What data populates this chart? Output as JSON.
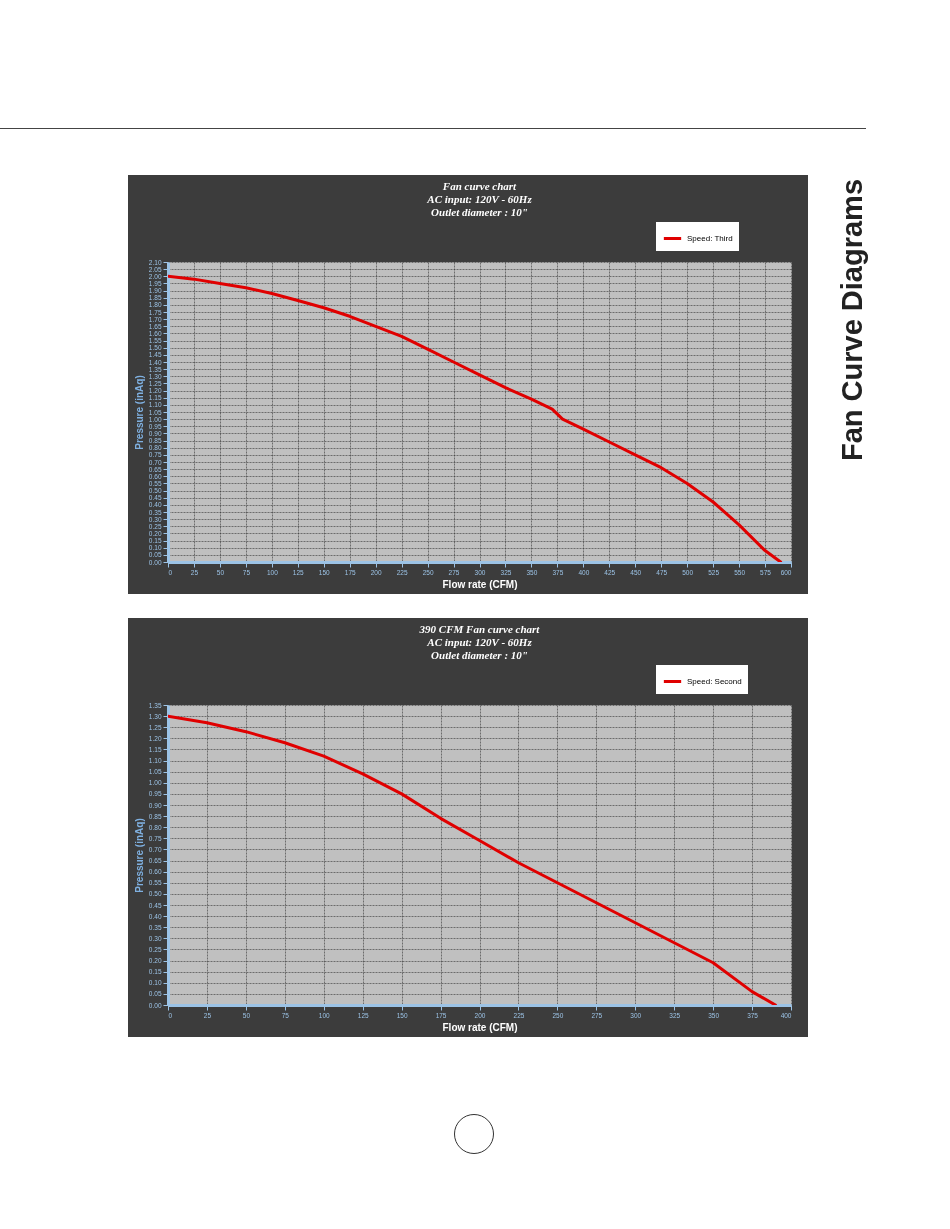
{
  "chart_data": [
    {
      "type": "line",
      "title": "Fan curve chart",
      "subtitle": "AC input: 120V - 60Hz\nOutlet diameter : 10\"",
      "xlabel": "Flow rate (CFM)",
      "ylabel": "Pressure (inAq)",
      "annotations": [
        "Fan Curve Diagrams"
      ],
      "x": [
        0,
        25,
        50,
        75,
        100,
        125,
        150,
        175,
        200,
        225,
        250,
        275,
        300,
        325,
        350,
        370,
        380,
        400,
        425,
        450,
        475,
        500,
        525,
        550,
        575,
        590
      ],
      "series": [
        {
          "name": "Speed: Third",
          "color": "#e00000",
          "values": [
            2.0,
            1.98,
            1.95,
            1.92,
            1.88,
            1.83,
            1.78,
            1.72,
            1.65,
            1.58,
            1.49,
            1.4,
            1.31,
            1.22,
            1.14,
            1.07,
            1.0,
            0.93,
            0.84,
            0.75,
            0.66,
            0.55,
            0.42,
            0.26,
            0.08,
            0.0
          ]
        }
      ],
      "xlim": [
        0,
        600
      ],
      "xticks": [
        0,
        25,
        50,
        75,
        100,
        125,
        150,
        175,
        200,
        225,
        250,
        275,
        300,
        325,
        350,
        375,
        400,
        425,
        450,
        475,
        500,
        525,
        550,
        575,
        600
      ],
      "ylim": [
        0,
        2.1
      ],
      "yticks": [
        {
          "value": 0,
          "label": "0.00"
        },
        0.05,
        {
          "value": 0.1,
          "label": "0.10"
        },
        0.15,
        {
          "value": 0.2,
          "label": "0.20"
        },
        0.25,
        {
          "value": 0.3,
          "label": "0.30"
        },
        0.35,
        {
          "value": 0.4,
          "label": "0.40"
        },
        0.45,
        {
          "value": 0.5,
          "label": "0.50"
        },
        0.55,
        {
          "value": 0.6,
          "label": "0.60"
        },
        0.65,
        {
          "value": 0.7,
          "label": "0.70"
        },
        0.75,
        {
          "value": 0.8,
          "label": "0.80"
        },
        0.85,
        {
          "value": 0.9,
          "label": "0.90"
        },
        0.95,
        {
          "value": 1,
          "label": "1.00"
        },
        1.05,
        {
          "value": 1.1,
          "label": "1.10"
        },
        1.15,
        {
          "value": 1.2,
          "label": "1.20"
        },
        1.25,
        {
          "value": 1.3,
          "label": "1.30"
        },
        1.35,
        {
          "value": 1.4,
          "label": "1.40"
        },
        1.45,
        {
          "value": 1.5,
          "label": "1.50"
        },
        1.55,
        {
          "value": 1.6,
          "label": "1.60"
        },
        1.65,
        {
          "value": 1.7,
          "label": "1.70"
        },
        1.75,
        {
          "value": 1.8,
          "label": "1.80"
        },
        1.85,
        {
          "value": 1.9,
          "label": "1.90"
        },
        1.95,
        {
          "value": 2,
          "label": "2.00"
        },
        2.05,
        {
          "value": 2.1,
          "label": "2.10"
        }
      ],
      "grid": true,
      "legend": "top right"
    },
    {
      "type": "line",
      "title": "390 CFM Fan curve chart",
      "subtitle": "AC input: 120V - 60Hz\nOutlet diameter : 10\"",
      "xlabel": "Flow rate (CFM)",
      "ylabel": "Pressure (inAq)",
      "x": [
        0,
        25,
        50,
        75,
        100,
        125,
        150,
        175,
        200,
        225,
        250,
        275,
        300,
        325,
        350,
        375,
        390
      ],
      "series": [
        {
          "name": "Speed: Second",
          "color": "#e00000",
          "values": [
            1.3,
            1.27,
            1.23,
            1.18,
            1.12,
            1.04,
            0.95,
            0.84,
            0.74,
            0.64,
            0.55,
            0.46,
            0.37,
            0.28,
            0.19,
            0.06,
            0.0
          ]
        }
      ],
      "xlim": [
        0,
        400
      ],
      "xticks": [
        0,
        25,
        50,
        75,
        100,
        125,
        150,
        175,
        200,
        225,
        250,
        275,
        300,
        325,
        350,
        375,
        400
      ],
      "ylim": [
        0,
        1.35
      ],
      "yticks": [
        {
          "value": 0,
          "label": "0.00"
        },
        0.05,
        {
          "value": 0.1,
          "label": "0.10"
        },
        0.15,
        {
          "value": 0.2,
          "label": "0.20"
        },
        0.25,
        {
          "value": 0.3,
          "label": "0.30"
        },
        0.35,
        {
          "value": 0.4,
          "label": "0.40"
        },
        0.45,
        {
          "value": 0.5,
          "label": "0.50"
        },
        0.55,
        {
          "value": 0.6,
          "label": "0.60"
        },
        0.65,
        {
          "value": 0.7,
          "label": "0.70"
        },
        0.75,
        {
          "value": 0.8,
          "label": "0.80"
        },
        0.85,
        {
          "value": 0.9,
          "label": "0.90"
        },
        0.95,
        {
          "value": 1,
          "label": "1.00"
        },
        1.05,
        {
          "value": 1.1,
          "label": "1.10"
        },
        1.15,
        {
          "value": 1.2,
          "label": "1.20"
        },
        1.25,
        {
          "value": 1.3,
          "label": "1.30"
        },
        1.35
      ],
      "grid": true,
      "legend": "top right"
    }
  ]
}
